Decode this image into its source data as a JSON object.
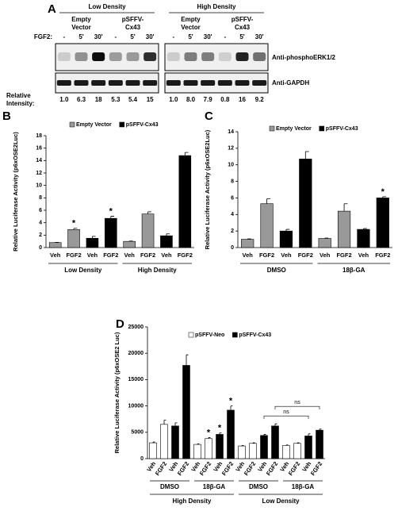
{
  "blot": {
    "panel": "A",
    "lane_label": "FGF2:",
    "antibodies": [
      "Anti-phosphoERK1/2",
      "Anti-GAPDH"
    ],
    "intensity_title": [
      "Relative",
      "Intensity:"
    ],
    "blots": [
      {
        "title": "Low Density",
        "groups": [
          [
            "Empty",
            "Vector"
          ],
          [
            "pSFFV-",
            "Cx43"
          ]
        ],
        "lanes": [
          "-",
          "5'",
          "30'",
          "-",
          "5'",
          "30'"
        ],
        "intensity": [
          1.0,
          6.3,
          18,
          5.3,
          5.4,
          15
        ],
        "intensity_labels": [
          "1.0",
          "6.3",
          "18",
          "5.3",
          "5.4",
          "15"
        ]
      },
      {
        "title": "High Density",
        "groups": [
          [
            "Empty",
            "Vector"
          ],
          [
            "pSFFV-",
            "Cx43"
          ]
        ],
        "lanes": [
          "-",
          "5'",
          "30'",
          "-",
          "5'",
          "30'"
        ],
        "intensity": [
          1.0,
          8.0,
          7.9,
          0.8,
          16,
          9.2
        ],
        "intensity_labels": [
          "1.0",
          "8.0",
          "7.9",
          "0.8",
          "16",
          "9.2"
        ]
      }
    ]
  },
  "chart_data": [
    {
      "panel": "B",
      "type": "bar",
      "ylabel": "Relative Luciferase Activity (p6xOSE2Luc)",
      "categories": [
        "Veh",
        "FGF2",
        "Veh",
        "FGF2",
        "Veh",
        "FGF2",
        "Veh",
        "FGF2"
      ],
      "series": [
        {
          "name": "Empty Vector",
          "color": "#999999",
          "values": [
            0.8,
            2.9,
            null,
            null,
            1.0,
            5.4,
            null,
            null
          ],
          "errors": [
            0.05,
            0.2,
            null,
            null,
            0.05,
            0.35,
            null,
            null
          ]
        },
        {
          "name": "pSFFV-Cx43",
          "color": "#000000",
          "values": [
            null,
            null,
            1.5,
            4.7,
            null,
            null,
            1.9,
            14.8
          ],
          "errors": [
            null,
            null,
            0.3,
            0.35,
            null,
            null,
            0.3,
            0.5
          ]
        }
      ],
      "ylim": [
        0,
        18
      ],
      "yticks": [
        0,
        2,
        4,
        6,
        8,
        10,
        12,
        14,
        16,
        18
      ],
      "groups": [
        "Low Density",
        "High Density"
      ],
      "annotations": [
        {
          "text": "*",
          "category": 1
        },
        {
          "text": "*",
          "category": 3
        }
      ],
      "legend": "upper left"
    },
    {
      "panel": "C",
      "type": "bar",
      "ylabel": "Relative Luciferase Activity (p6xOSE2Luc)",
      "categories": [
        "Veh",
        "FGF2",
        "Veh",
        "FGF2",
        "Veh",
        "FGF2",
        "Veh",
        "FGF2"
      ],
      "series": [
        {
          "name": "Empty Vector",
          "color": "#999999",
          "values": [
            1.0,
            5.3,
            null,
            null,
            1.1,
            4.4,
            null,
            null
          ],
          "errors": [
            0.05,
            0.6,
            null,
            null,
            0.05,
            0.9,
            null,
            null
          ]
        },
        {
          "name": "pSFFV-Cx43",
          "color": "#000000",
          "values": [
            null,
            null,
            2.0,
            10.7,
            null,
            null,
            2.2,
            6.0
          ],
          "errors": [
            null,
            null,
            0.2,
            0.9,
            null,
            null,
            0.1,
            0.15
          ]
        }
      ],
      "ylim": [
        0,
        14
      ],
      "yticks": [
        0,
        2,
        4,
        6,
        8,
        10,
        12,
        14
      ],
      "groups": [
        "DMSO",
        "18β-GA"
      ],
      "annotations": [
        {
          "text": "*",
          "category": 7
        }
      ],
      "legend": "upper left"
    },
    {
      "panel": "D",
      "type": "bar",
      "ylabel": "Relative Luciferase Activity (p6xOSE2 Luc)",
      "categories": [
        "Veh",
        "FGF2",
        "Veh",
        "FGF2",
        "Veh",
        "FGF2",
        "Veh",
        "FGF2",
        "Veh",
        "FGF2",
        "Veh",
        "FGF2",
        "Veh",
        "FGF2",
        "Veh",
        "FGF2"
      ],
      "series": [
        {
          "name": "pSFFV-Neo",
          "color": "#ffffff",
          "values": [
            3000,
            6500,
            null,
            null,
            2700,
            3800,
            null,
            null,
            2400,
            2900,
            null,
            null,
            2500,
            2900,
            null,
            null
          ],
          "errors": [
            150,
            800,
            null,
            null,
            100,
            200,
            null,
            null,
            100,
            100,
            null,
            null,
            100,
            100,
            null,
            null
          ]
        },
        {
          "name": "pSFFV-Cx43",
          "color": "#000000",
          "values": [
            null,
            null,
            6200,
            17700,
            null,
            null,
            4600,
            9200,
            null,
            null,
            4400,
            6200,
            null,
            null,
            4300,
            5400
          ],
          "errors": [
            null,
            null,
            600,
            2000,
            null,
            null,
            300,
            800,
            null,
            null,
            200,
            400,
            null,
            null,
            400,
            200
          ]
        }
      ],
      "ylim": [
        0,
        25000
      ],
      "yticks": [
        0,
        5000,
        10000,
        15000,
        20000,
        25000
      ],
      "groups": [
        "DMSO",
        "18β-GA",
        "DMSO",
        "18β-GA"
      ],
      "supergroups": [
        "High Density",
        "Low Density"
      ],
      "annotations": [
        {
          "text": "*",
          "category": 5
        },
        {
          "text": "*",
          "category": 6
        },
        {
          "text": "*",
          "category": 7
        }
      ],
      "brackets": [
        {
          "text": "ns",
          "from": 10,
          "to": 14
        },
        {
          "text": "ns",
          "from": 11,
          "to": 15
        }
      ],
      "legend": "upper left"
    }
  ]
}
